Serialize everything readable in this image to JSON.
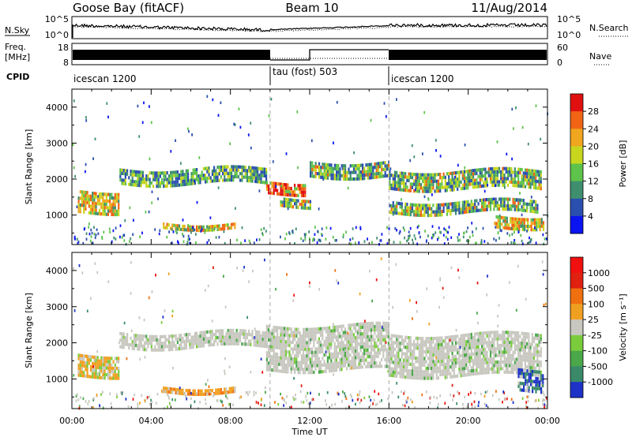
{
  "header": {
    "station": "Goose Bay (fitACF)",
    "beam": "Beam 10",
    "date": "11/Aug/2014"
  },
  "noise_panel": {
    "left_label": "N.Sky",
    "right_label": "N.Search",
    "left_ticks": [
      "10^5",
      "10^0"
    ],
    "right_ticks": [
      "10^5",
      "10^0"
    ]
  },
  "freq_panel": {
    "left_label_1": "Freq.",
    "left_label_2": "[MHz]",
    "right_label": "Nave",
    "left_ticks": [
      "18",
      "8"
    ],
    "right_ticks": [
      "60",
      "0"
    ]
  },
  "cpid": {
    "label": "CPID",
    "segments": [
      {
        "name": "icescan 1200",
        "start": 0,
        "end": 10
      },
      {
        "name": "tau (fost) 503",
        "start": 10,
        "end": 16
      },
      {
        "name": "icescan 1200",
        "start": 16,
        "end": 24
      }
    ]
  },
  "x_axis": {
    "label": "Time UT",
    "ticks": [
      "00:00",
      "04:00",
      "08:00",
      "12:00",
      "16:00",
      "20:00",
      "00:00"
    ]
  },
  "chart_data": [
    {
      "type": "heatmap",
      "name": "power",
      "ylabel": "Slant Range [km]",
      "xlim": [
        0,
        24
      ],
      "ylim": [
        180,
        4500
      ],
      "yticks": [
        "1000",
        "2000",
        "3000",
        "4000"
      ],
      "colorbar": {
        "label": "Power [dB]",
        "ticks": [
          "4",
          "8",
          "12",
          "16",
          "20",
          "24",
          "28"
        ],
        "colors": [
          "#0a14f0",
          "#2a4fae",
          "#3f8f6f",
          "#5ec34a",
          "#c8d61e",
          "#f0a61e",
          "#f06414",
          "#e01010"
        ]
      },
      "bands": [
        {
          "t0": 0.3,
          "t1": 2.4,
          "r0": 1100,
          "r1": 1700,
          "level": "high"
        },
        {
          "t0": 2.4,
          "t1": 9.8,
          "r0": 1900,
          "r1": 2300,
          "level": "low"
        },
        {
          "t0": 4.5,
          "t1": 8.2,
          "r0": 650,
          "r1": 800,
          "level": "high"
        },
        {
          "t0": 9.8,
          "t1": 11.8,
          "r0": 1650,
          "r1": 1950,
          "level": "max"
        },
        {
          "t0": 10.5,
          "t1": 12.0,
          "r0": 1250,
          "r1": 1500,
          "level": "mid"
        },
        {
          "t0": 12.0,
          "t1": 16.0,
          "r0": 2100,
          "r1": 2500,
          "level": "mid"
        },
        {
          "t0": 16.0,
          "t1": 23.7,
          "r0": 1750,
          "r1": 2250,
          "level": "mid"
        },
        {
          "t0": 16.0,
          "t1": 23.5,
          "r0": 1100,
          "r1": 1400,
          "level": "mid"
        },
        {
          "t0": 21.3,
          "t1": 23.8,
          "r0": 700,
          "r1": 1000,
          "level": "high"
        }
      ]
    },
    {
      "type": "heatmap",
      "name": "velocity",
      "ylabel": "Slant Range [km]",
      "xlim": [
        0,
        24
      ],
      "ylim": [
        180,
        4500
      ],
      "yticks": [
        "1000",
        "2000",
        "3000",
        "4000"
      ],
      "colorbar": {
        "label": "Velocity [m s⁻¹]",
        "ticks": [
          "1000",
          "500",
          "100",
          "25",
          "-25",
          "-100",
          "-500",
          "-1000"
        ],
        "colors": [
          "#1e32c8",
          "#3a8a6a",
          "#4aa84a",
          "#7acc3c",
          "#c8c8c0",
          "#f0a020",
          "#f07010",
          "#e02010",
          "#f01010"
        ]
      },
      "bands": [
        {
          "t0": 0.3,
          "t1": 2.4,
          "r0": 1100,
          "r1": 1700,
          "level": "slow-away"
        },
        {
          "t0": 2.4,
          "t1": 9.8,
          "r0": 1900,
          "r1": 2300,
          "level": "ground"
        },
        {
          "t0": 4.5,
          "t1": 8.2,
          "r0": 650,
          "r1": 800,
          "level": "away"
        },
        {
          "t0": 9.8,
          "t1": 16.0,
          "r0": 1250,
          "r1": 2500,
          "level": "ground"
        },
        {
          "t0": 16.0,
          "t1": 23.7,
          "r0": 1100,
          "r1": 2250,
          "level": "ground"
        },
        {
          "t0": 22.5,
          "t1": 23.8,
          "r0": 700,
          "r1": 1300,
          "level": "toward"
        }
      ]
    }
  ]
}
